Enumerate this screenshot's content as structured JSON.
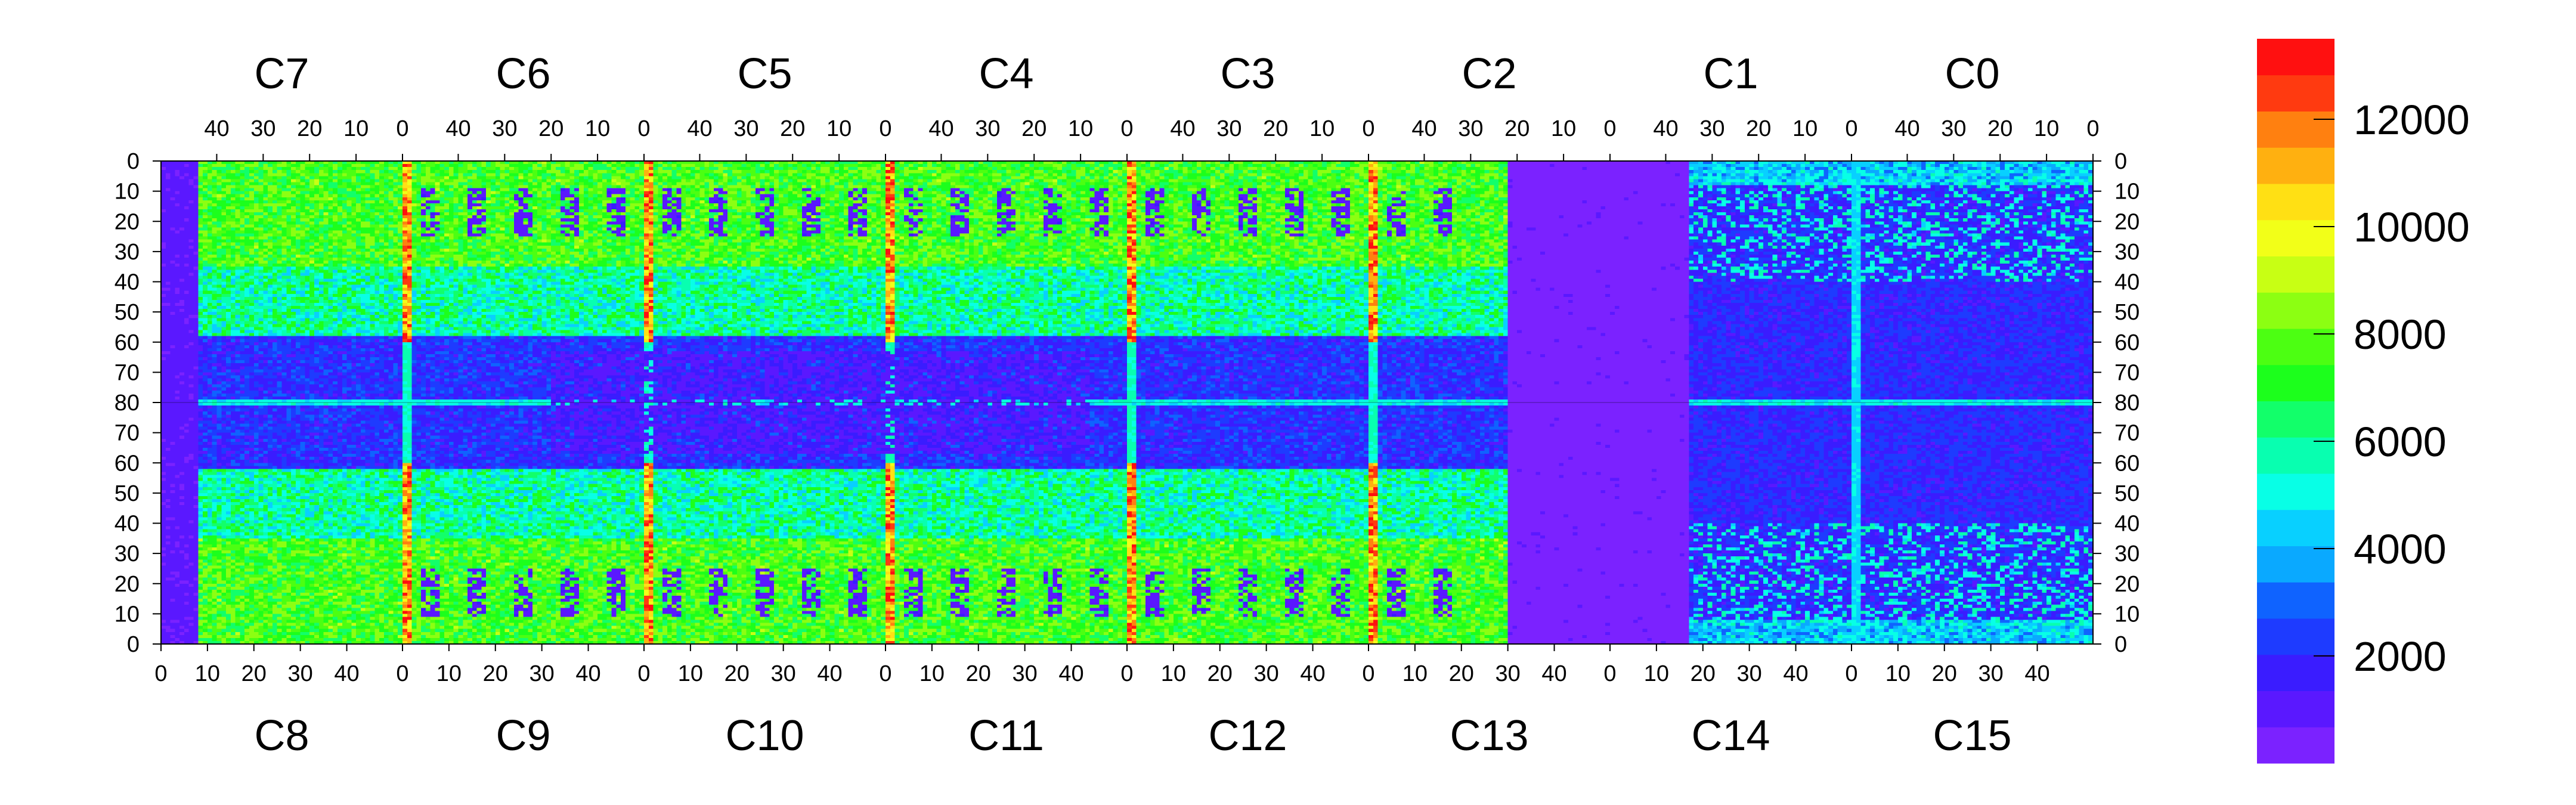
{
  "chart_data": {
    "type": "heatmap",
    "title": "",
    "xlabel": "",
    "ylabel": "",
    "colormap": "rainbow",
    "colors": [
      "#7b22ff",
      "#5a18ff",
      "#3a1cff",
      "#1e3bff",
      "#0f63ff",
      "#0aa9ff",
      "#08d0ff",
      "#08ffe6",
      "#08ffb0",
      "#12ff6a",
      "#1cff1c",
      "#4cff12",
      "#8cff12",
      "#c8ff14",
      "#f2ff18",
      "#ffe014",
      "#ffb010",
      "#ff8010",
      "#ff3a10",
      "#ff1010"
    ],
    "zlim": [
      0,
      13500
    ],
    "colorbar_ticks": [
      2000,
      4000,
      6000,
      8000,
      10000,
      12000
    ],
    "chips_top": [
      "C7",
      "C6",
      "C5",
      "C4",
      "C3",
      "C2",
      "C1",
      "C0"
    ],
    "chips_bottom": [
      "C8",
      "C9",
      "C10",
      "C11",
      "C12",
      "C13",
      "C14",
      "C15"
    ],
    "top_x_ticks": [
      "40",
      "30",
      "20",
      "10",
      "0"
    ],
    "bottom_x_ticks": [
      "0",
      "10",
      "20",
      "30",
      "40"
    ],
    "y_ticks": [
      "0",
      "10",
      "20",
      "30",
      "40",
      "50",
      "60",
      "70",
      "80",
      "70",
      "60",
      "50",
      "40",
      "30",
      "20",
      "10",
      "0"
    ],
    "row_count_per_chip": 80,
    "col_count_per_chip": 52,
    "regions": [
      {
        "name": "C7 top",
        "level": 7500
      },
      {
        "name": "C13-C14 inactive area",
        "level": 500
      },
      {
        "name": "column-edge hot strips",
        "level": 12500
      }
    ]
  }
}
